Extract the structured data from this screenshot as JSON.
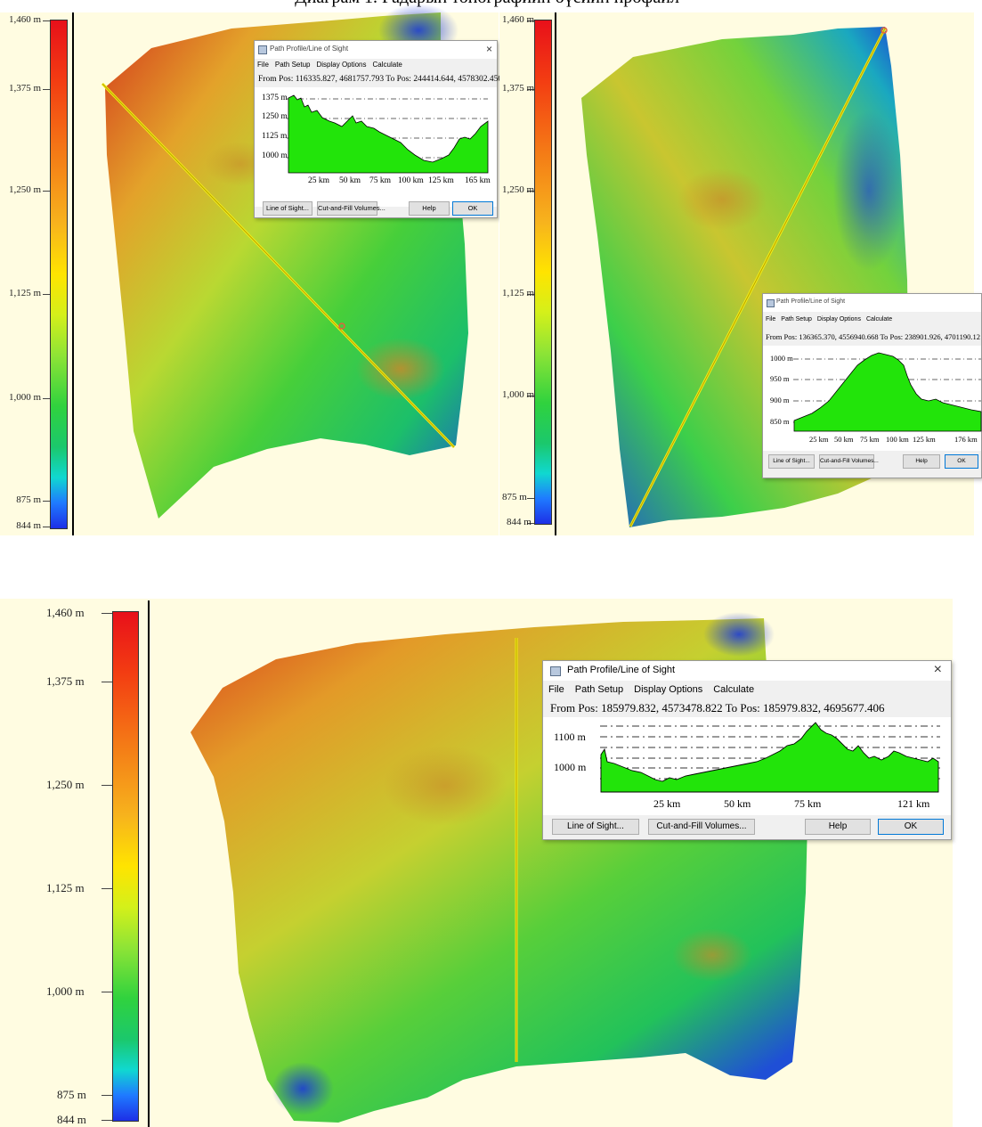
{
  "page": {
    "heading": "Диаграм 1. Радарын топографийн бүсийн профайл"
  },
  "colors": {
    "panel_bg": "#fffce1",
    "terrain_low": "#1d3bd6",
    "terrain_mid": "#2fcf3a",
    "terrain_high": "#e2651c",
    "profile_fill": "#22e40a",
    "line_color": "#f4ef14"
  },
  "elevation_scale": {
    "labels": [
      "1,460 m",
      "1,375 m",
      "1,250 m",
      "1,125 m",
      "1,000 m",
      "875 m",
      "844 m"
    ]
  },
  "dialogs": [
    {
      "title": "Path Profile/Line of Sight",
      "menu": [
        "File",
        "Path Setup",
        "Display Options",
        "Calculate"
      ],
      "from_to": "From Pos: 116335.827, 4681757.793  To Pos: 244414.644, 4578302.450",
      "y_labels": [
        "1375 m",
        "1250 m",
        "1125 m",
        "1000 m"
      ],
      "x_labels": [
        "25 km",
        "50 km",
        "75 km",
        "100 km",
        "125 km",
        "165 km"
      ],
      "buttons": {
        "line_of_sight": "Line of Sight...",
        "cut_fill": "Cut-and-Fill Volumes...",
        "help": "Help",
        "ok": "OK"
      }
    },
    {
      "title": "Path Profile/Line of Sight",
      "menu": [
        "File",
        "Path Setup",
        "Display Options",
        "Calculate"
      ],
      "from_to": "From Pos: 136365.370, 4556940.668  To Pos: 238901.926, 4701190.12",
      "y_labels": [
        "1000 m",
        "950 m",
        "900 m",
        "850 m"
      ],
      "x_labels": [
        "25 km",
        "50 km",
        "75 km",
        "100 km",
        "125 km",
        "176 km"
      ],
      "buttons": {
        "line_of_sight": "Line of Sight...",
        "cut_fill": "Cut-and-Fill Volumes...",
        "help": "Help",
        "ok": "OK"
      }
    },
    {
      "title": "Path Profile/Line of Sight",
      "menu": [
        "File",
        "Path Setup",
        "Display Options",
        "Calculate"
      ],
      "from_to": "From Pos: 185979.832, 4573478.822  To Pos: 185979.832, 4695677.406",
      "y_labels": [
        "1100 m",
        "1000 m"
      ],
      "x_labels": [
        "25 km",
        "50 km",
        "75 km",
        "121 km"
      ],
      "buttons": {
        "line_of_sight": "Line of Sight...",
        "cut_fill": "Cut-and-Fill Volumes...",
        "help": "Help",
        "ok": "OK"
      }
    }
  ]
}
